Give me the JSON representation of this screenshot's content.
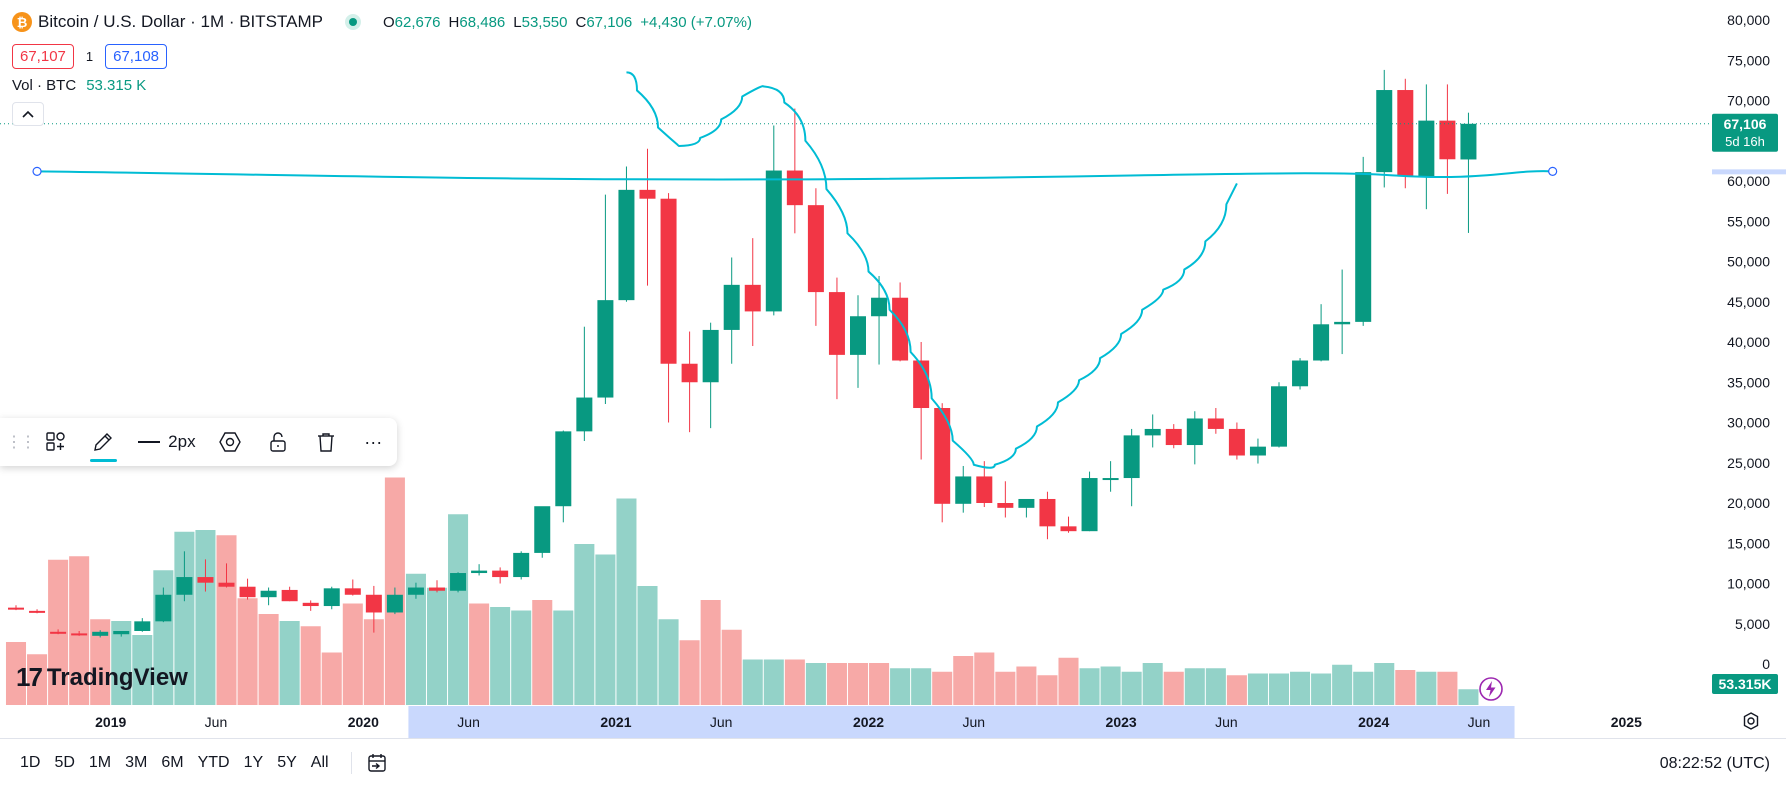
{
  "header": {
    "logo_glyph": "₿",
    "symbol_title": "Bitcoin / U.S. Dollar · 1M · BITSTAMP",
    "ohlc": [
      {
        "key": "O",
        "value": "62,676"
      },
      {
        "key": "H",
        "value": "68,486"
      },
      {
        "key": "L",
        "value": "53,550"
      },
      {
        "key": "C",
        "value": "67,106"
      }
    ],
    "change": "+4,430 (+7.07%)",
    "sell_price": "67,107",
    "spread": "1",
    "buy_price": "67,108",
    "volume_label": "Vol · BTC",
    "volume_value": "53.315 K",
    "collapse_glyph": "^"
  },
  "toolbar": {
    "grip_glyph": "⋮⋮",
    "width_label": "2px",
    "more_glyph": "···"
  },
  "watermark": {
    "name": "TradingView",
    "mark": "17"
  },
  "range_buttons": [
    "1D",
    "5D",
    "1M",
    "3M",
    "6M",
    "YTD",
    "1Y",
    "5Y",
    "All"
  ],
  "clock": "08:22:52 (UTC)",
  "colors": {
    "up": "#089981",
    "down": "#f23645",
    "up_volume": "#93d2c8",
    "down_volume": "#f7a9a7",
    "indicator": "#00bcd4",
    "time_highlight": "#c9d8fd"
  },
  "icons": {
    "live": "live-status-dot",
    "templates": "templates-icon",
    "pen": "pen-icon",
    "settings": "gear-icon",
    "lock": "unlock-icon",
    "delete": "trash-icon",
    "goto": "go-to-date-icon",
    "flash": "flash-icon",
    "chart_settings": "chart-settings-icon"
  },
  "chart_data": {
    "type": "candlestick",
    "title": "Bitcoin / U.S. Dollar · 1M · BITSTAMP",
    "interval": "1M",
    "y_ticks": [
      0,
      5000,
      10000,
      15000,
      20000,
      25000,
      30000,
      35000,
      40000,
      45000,
      50000,
      55000,
      60000,
      65000,
      70000,
      75000,
      80000
    ],
    "y_tick_labels": [
      "0",
      "5,000",
      "10,000",
      "15,000",
      "20,000",
      "25,000",
      "30,000",
      "35,000",
      "40,000",
      "45,000",
      "50,000",
      "55,000",
      "60,000",
      "65,000",
      "70,000",
      "75,000",
      "80,000"
    ],
    "ylim": [
      0,
      80000
    ],
    "x_tick_labels": [
      {
        "label": "2019",
        "date": "2019-01"
      },
      {
        "label": "Jun",
        "date": "2019-06"
      },
      {
        "label": "2020",
        "date": "2020-01"
      },
      {
        "label": "Jun",
        "date": "2020-06"
      },
      {
        "label": "2021",
        "date": "2021-01"
      },
      {
        "label": "Jun",
        "date": "2021-06"
      },
      {
        "label": "2022",
        "date": "2022-01"
      },
      {
        "label": "Jun",
        "date": "2022-06"
      },
      {
        "label": "2023",
        "date": "2023-01"
      },
      {
        "label": "Jun",
        "date": "2023-06"
      },
      {
        "label": "2024",
        "date": "2024-01"
      },
      {
        "label": "Jun",
        "date": "2024-06"
      },
      {
        "label": "2025",
        "date": "2025-01"
      }
    ],
    "last_price_label": "67,106",
    "last_price_countdown": "5d 16h",
    "last_volume_label": "53.315K",
    "last_price": 67106,
    "highlight_range": [
      "2020-03",
      "2024-07"
    ],
    "series": [
      {
        "date": "2018-08",
        "o": 7000,
        "h": 7300,
        "l": 6700,
        "c": 6950
      },
      {
        "date": "2018-09",
        "o": 6600,
        "h": 6800,
        "l": 6300,
        "c": 6550
      },
      {
        "date": "2018-10",
        "o": 4000,
        "h": 4300,
        "l": 3700,
        "c": 3800
      },
      {
        "date": "2018-11",
        "o": 3800,
        "h": 4100,
        "l": 3500,
        "c": 3600
      },
      {
        "date": "2018-12",
        "o": 3500,
        "h": 4200,
        "l": 3300,
        "c": 4000
      },
      {
        "date": "2019-01",
        "o": 3700,
        "h": 4100,
        "l": 3400,
        "c": 4100
      },
      {
        "date": "2019-02",
        "o": 4100,
        "h": 5700,
        "l": 4000,
        "c": 5300
      },
      {
        "date": "2019-03",
        "o": 5300,
        "h": 9500,
        "l": 5200,
        "c": 8600
      },
      {
        "date": "2019-04",
        "o": 8600,
        "h": 14000,
        "l": 7800,
        "c": 10800
      },
      {
        "date": "2019-05",
        "o": 10800,
        "h": 13000,
        "l": 9000,
        "c": 10100
      },
      {
        "date": "2019-06",
        "o": 10100,
        "h": 12500,
        "l": 9500,
        "c": 9600
      },
      {
        "date": "2019-07",
        "o": 9600,
        "h": 10600,
        "l": 8000,
        "c": 8300
      },
      {
        "date": "2019-08",
        "o": 8300,
        "h": 9500,
        "l": 7300,
        "c": 9100
      },
      {
        "date": "2019-09",
        "o": 9200,
        "h": 9600,
        "l": 7800,
        "c": 7800
      },
      {
        "date": "2019-10",
        "o": 7600,
        "h": 7900,
        "l": 6600,
        "c": 7200
      },
      {
        "date": "2019-11",
        "o": 7200,
        "h": 9600,
        "l": 6800,
        "c": 9400
      },
      {
        "date": "2019-12",
        "o": 9400,
        "h": 10500,
        "l": 8500,
        "c": 8600
      },
      {
        "date": "2020-01",
        "o": 8600,
        "h": 9700,
        "l": 3900,
        "c": 6400
      },
      {
        "date": "2020-02",
        "o": 6400,
        "h": 9500,
        "l": 6200,
        "c": 8600
      },
      {
        "date": "2020-03",
        "o": 8600,
        "h": 10100,
        "l": 8100,
        "c": 9500
      },
      {
        "date": "2020-04",
        "o": 9500,
        "h": 10400,
        "l": 8900,
        "c": 9100
      },
      {
        "date": "2020-05",
        "o": 9100,
        "h": 11400,
        "l": 8900,
        "c": 11300
      },
      {
        "date": "2020-06",
        "o": 11300,
        "h": 12400,
        "l": 11000,
        "c": 11600
      },
      {
        "date": "2020-07",
        "o": 11600,
        "h": 12000,
        "l": 10000,
        "c": 10800
      },
      {
        "date": "2020-08",
        "o": 10800,
        "h": 14000,
        "l": 10500,
        "c": 13800
      },
      {
        "date": "2020-09",
        "o": 13800,
        "h": 19500,
        "l": 13200,
        "c": 19600
      },
      {
        "date": "2020-10",
        "o": 19600,
        "h": 29000,
        "l": 17600,
        "c": 28900
      },
      {
        "date": "2020-11",
        "o": 28900,
        "h": 41900,
        "l": 27700,
        "c": 33100
      },
      {
        "date": "2020-12",
        "o": 33100,
        "h": 58300,
        "l": 32300,
        "c": 45200
      },
      {
        "date": "2021-01",
        "o": 45200,
        "h": 61800,
        "l": 45000,
        "c": 58900
      },
      {
        "date": "2021-02",
        "o": 58900,
        "h": 64000,
        "l": 47000,
        "c": 57800
      },
      {
        "date": "2021-03",
        "o": 57800,
        "h": 58500,
        "l": 30000,
        "c": 37300
      },
      {
        "date": "2021-04",
        "o": 37300,
        "h": 41300,
        "l": 28800,
        "c": 35000
      },
      {
        "date": "2021-05",
        "o": 35000,
        "h": 42400,
        "l": 29300,
        "c": 41500
      },
      {
        "date": "2021-06",
        "o": 41500,
        "h": 50500,
        "l": 37300,
        "c": 47100
      },
      {
        "date": "2021-07",
        "o": 47100,
        "h": 52900,
        "l": 39500,
        "c": 43800
      },
      {
        "date": "2021-08",
        "o": 43800,
        "h": 66900,
        "l": 43300,
        "c": 61300
      },
      {
        "date": "2021-09",
        "o": 61300,
        "h": 69000,
        "l": 53500,
        "c": 57000
      },
      {
        "date": "2021-10",
        "o": 57000,
        "h": 59100,
        "l": 42000,
        "c": 46200
      },
      {
        "date": "2021-11",
        "o": 46200,
        "h": 48000,
        "l": 32900,
        "c": 38400
      },
      {
        "date": "2021-12",
        "o": 38400,
        "h": 45800,
        "l": 34300,
        "c": 43200
      },
      {
        "date": "2022-01",
        "o": 43200,
        "h": 48200,
        "l": 37200,
        "c": 45500
      },
      {
        "date": "2022-02",
        "o": 45500,
        "h": 47400,
        "l": 37600,
        "c": 37700
      },
      {
        "date": "2022-03",
        "o": 37700,
        "h": 40000,
        "l": 25400,
        "c": 31800
      },
      {
        "date": "2022-04",
        "o": 31800,
        "h": 32400,
        "l": 17600,
        "c": 19900
      },
      {
        "date": "2022-05",
        "o": 19900,
        "h": 24600,
        "l": 18800,
        "c": 23300
      },
      {
        "date": "2022-06",
        "o": 23300,
        "h": 25200,
        "l": 19500,
        "c": 20000
      },
      {
        "date": "2022-07",
        "o": 20000,
        "h": 22700,
        "l": 18200,
        "c": 19400
      },
      {
        "date": "2022-08",
        "o": 19400,
        "h": 20400,
        "l": 18200,
        "c": 20500
      },
      {
        "date": "2022-09",
        "o": 20500,
        "h": 21400,
        "l": 15500,
        "c": 17100
      },
      {
        "date": "2022-10",
        "o": 17100,
        "h": 18300,
        "l": 16300,
        "c": 16500
      },
      {
        "date": "2022-11",
        "o": 16500,
        "h": 23900,
        "l": 16500,
        "c": 23100
      },
      {
        "date": "2022-12",
        "o": 23100,
        "h": 25200,
        "l": 21400,
        "c": 23100
      },
      {
        "date": "2023-01",
        "o": 23100,
        "h": 29200,
        "l": 19600,
        "c": 28400
      },
      {
        "date": "2023-02",
        "o": 28400,
        "h": 31000,
        "l": 26900,
        "c": 29200
      },
      {
        "date": "2023-03",
        "o": 29200,
        "h": 29800,
        "l": 26800,
        "c": 27200
      },
      {
        "date": "2023-04",
        "o": 27200,
        "h": 31400,
        "l": 24800,
        "c": 30500
      },
      {
        "date": "2023-05",
        "o": 30500,
        "h": 31800,
        "l": 28600,
        "c": 29200
      },
      {
        "date": "2023-06",
        "o": 29200,
        "h": 30000,
        "l": 25400,
        "c": 25900
      },
      {
        "date": "2023-07",
        "o": 25900,
        "h": 28000,
        "l": 24900,
        "c": 27000
      },
      {
        "date": "2023-08",
        "o": 27000,
        "h": 35000,
        "l": 26900,
        "c": 34500
      },
      {
        "date": "2023-09",
        "o": 34500,
        "h": 38000,
        "l": 34100,
        "c": 37700
      },
      {
        "date": "2023-10",
        "o": 37700,
        "h": 44700,
        "l": 37600,
        "c": 42200
      },
      {
        "date": "2023-11",
        "o": 42200,
        "h": 49000,
        "l": 38500,
        "c": 42500
      },
      {
        "date": "2023-12",
        "o": 42500,
        "h": 63000,
        "l": 42000,
        "c": 61100
      },
      {
        "date": "2024-01",
        "o": 61100,
        "h": 73800,
        "l": 59200,
        "c": 71300
      },
      {
        "date": "2024-02",
        "o": 71300,
        "h": 72700,
        "l": 59100,
        "c": 60600
      },
      {
        "date": "2024-03",
        "o": 60600,
        "h": 72000,
        "l": 56500,
        "c": 67500
      },
      {
        "date": "2024-04",
        "o": 67500,
        "h": 72000,
        "l": 58400,
        "c": 62700
      },
      {
        "date": "2024-05",
        "o": 62676,
        "h": 68486,
        "l": 53550,
        "c": 67106
      }
    ],
    "volume": [
      {
        "date": "2018-08",
        "v": 3.6,
        "up": false
      },
      {
        "date": "2018-09",
        "v": 2.9,
        "up": false
      },
      {
        "date": "2018-10",
        "v": 8.3,
        "up": false
      },
      {
        "date": "2018-11",
        "v": 8.5,
        "up": false
      },
      {
        "date": "2018-12",
        "v": 4.9,
        "up": false
      },
      {
        "date": "2019-01",
        "v": 4.8,
        "up": true
      },
      {
        "date": "2019-02",
        "v": 4.0,
        "up": true
      },
      {
        "date": "2019-03",
        "v": 7.7,
        "up": true
      },
      {
        "date": "2019-04",
        "v": 9.9,
        "up": true
      },
      {
        "date": "2019-05",
        "v": 10.0,
        "up": true
      },
      {
        "date": "2019-06",
        "v": 9.7,
        "up": false
      },
      {
        "date": "2019-07",
        "v": 6.1,
        "up": false
      },
      {
        "date": "2019-08",
        "v": 5.2,
        "up": false
      },
      {
        "date": "2019-09",
        "v": 4.8,
        "up": true
      },
      {
        "date": "2019-10",
        "v": 4.5,
        "up": false
      },
      {
        "date": "2019-11",
        "v": 3.0,
        "up": false
      },
      {
        "date": "2019-12",
        "v": 5.8,
        "up": false
      },
      {
        "date": "2020-01",
        "v": 4.9,
        "up": false
      },
      {
        "date": "2020-02",
        "v": 13.0,
        "up": false
      },
      {
        "date": "2020-03",
        "v": 7.5,
        "up": true
      },
      {
        "date": "2020-04",
        "v": 6.7,
        "up": true
      },
      {
        "date": "2020-05",
        "v": 10.9,
        "up": true
      },
      {
        "date": "2020-06",
        "v": 5.8,
        "up": false
      },
      {
        "date": "2020-07",
        "v": 5.6,
        "up": true
      },
      {
        "date": "2020-08",
        "v": 5.4,
        "up": true
      },
      {
        "date": "2020-09",
        "v": 6.0,
        "up": false
      },
      {
        "date": "2020-10",
        "v": 5.4,
        "up": true
      },
      {
        "date": "2020-11",
        "v": 9.2,
        "up": true
      },
      {
        "date": "2020-12",
        "v": 8.6,
        "up": true
      },
      {
        "date": "2021-01",
        "v": 11.8,
        "up": true
      },
      {
        "date": "2021-02",
        "v": 6.8,
        "up": true
      },
      {
        "date": "2021-03",
        "v": 4.9,
        "up": true
      },
      {
        "date": "2021-04",
        "v": 3.7,
        "up": false
      },
      {
        "date": "2021-05",
        "v": 6.0,
        "up": false
      },
      {
        "date": "2021-06",
        "v": 4.3,
        "up": false
      },
      {
        "date": "2021-07",
        "v": 2.6,
        "up": true
      },
      {
        "date": "2021-08",
        "v": 2.6,
        "up": true
      },
      {
        "date": "2021-09",
        "v": 2.6,
        "up": false
      },
      {
        "date": "2021-10",
        "v": 2.4,
        "up": true
      },
      {
        "date": "2021-11",
        "v": 2.4,
        "up": false
      },
      {
        "date": "2021-12",
        "v": 2.4,
        "up": false
      },
      {
        "date": "2022-01",
        "v": 2.4,
        "up": false
      },
      {
        "date": "2022-02",
        "v": 2.1,
        "up": true
      },
      {
        "date": "2022-03",
        "v": 2.1,
        "up": true
      },
      {
        "date": "2022-04",
        "v": 1.9,
        "up": false
      },
      {
        "date": "2022-05",
        "v": 2.8,
        "up": false
      },
      {
        "date": "2022-06",
        "v": 3.0,
        "up": false
      },
      {
        "date": "2022-07",
        "v": 1.9,
        "up": false
      },
      {
        "date": "2022-08",
        "v": 2.2,
        "up": false
      },
      {
        "date": "2022-09",
        "v": 1.7,
        "up": false
      },
      {
        "date": "2022-10",
        "v": 2.7,
        "up": false
      },
      {
        "date": "2022-11",
        "v": 2.1,
        "up": true
      },
      {
        "date": "2022-12",
        "v": 2.2,
        "up": true
      },
      {
        "date": "2023-01",
        "v": 1.9,
        "up": true
      },
      {
        "date": "2023-02",
        "v": 2.4,
        "up": true
      },
      {
        "date": "2023-03",
        "v": 1.9,
        "up": false
      },
      {
        "date": "2023-04",
        "v": 2.1,
        "up": true
      },
      {
        "date": "2023-05",
        "v": 2.1,
        "up": true
      },
      {
        "date": "2023-06",
        "v": 1.7,
        "up": false
      },
      {
        "date": "2023-07",
        "v": 1.8,
        "up": true
      },
      {
        "date": "2023-08",
        "v": 1.8,
        "up": true
      },
      {
        "date": "2023-09",
        "v": 1.9,
        "up": true
      },
      {
        "date": "2023-10",
        "v": 1.8,
        "up": true
      },
      {
        "date": "2023-11",
        "v": 2.3,
        "up": true
      },
      {
        "date": "2023-12",
        "v": 1.9,
        "up": true
      },
      {
        "date": "2024-01",
        "v": 2.4,
        "up": true
      },
      {
        "date": "2024-02",
        "v": 2.0,
        "up": false
      },
      {
        "date": "2024-03",
        "v": 1.9,
        "up": true
      },
      {
        "date": "2024-04",
        "v": 1.9,
        "up": false
      },
      {
        "date": "2024-05",
        "v": 0.9,
        "up": true
      }
    ],
    "indicator": {
      "name": "curve drawing",
      "points": [
        {
          "date": "2021-01",
          "price": 73500
        },
        {
          "date": "2021-02",
          "price": 69000
        },
        {
          "date": "2021-03",
          "price": 64300
        },
        {
          "date": "2021-04",
          "price": 64400
        },
        {
          "date": "2021-05",
          "price": 66300
        },
        {
          "date": "2021-06",
          "price": 69000
        },
        {
          "date": "2021-07",
          "price": 72000
        },
        {
          "date": "2021-08",
          "price": 71500
        },
        {
          "date": "2021-09",
          "price": 68000
        },
        {
          "date": "2021-10",
          "price": 62000
        },
        {
          "date": "2021-11",
          "price": 56000
        },
        {
          "date": "2021-12",
          "price": 51000
        },
        {
          "date": "2022-01",
          "price": 46500
        },
        {
          "date": "2022-02",
          "price": 41500
        },
        {
          "date": "2022-03",
          "price": 36000
        },
        {
          "date": "2022-04",
          "price": 30000
        },
        {
          "date": "2022-05",
          "price": 25500
        },
        {
          "date": "2022-06",
          "price": 24000
        },
        {
          "date": "2022-07",
          "price": 25500
        },
        {
          "date": "2022-08",
          "price": 28000
        },
        {
          "date": "2022-09",
          "price": 31000
        },
        {
          "date": "2022-10",
          "price": 34000
        },
        {
          "date": "2022-11",
          "price": 36500
        },
        {
          "date": "2022-12",
          "price": 39500
        },
        {
          "date": "2023-01",
          "price": 42500
        },
        {
          "date": "2023-02",
          "price": 45500
        },
        {
          "date": "2023-03",
          "price": 47500
        },
        {
          "date": "2023-04",
          "price": 50500
        },
        {
          "date": "2023-05",
          "price": 54500
        },
        {
          "date": "2023-06",
          "price": 59700
        }
      ]
    },
    "horizontal_curve": {
      "name": "horizontal drawing",
      "start_date": "2018-09",
      "end_date": "2024-09",
      "price": 61200
    }
  }
}
